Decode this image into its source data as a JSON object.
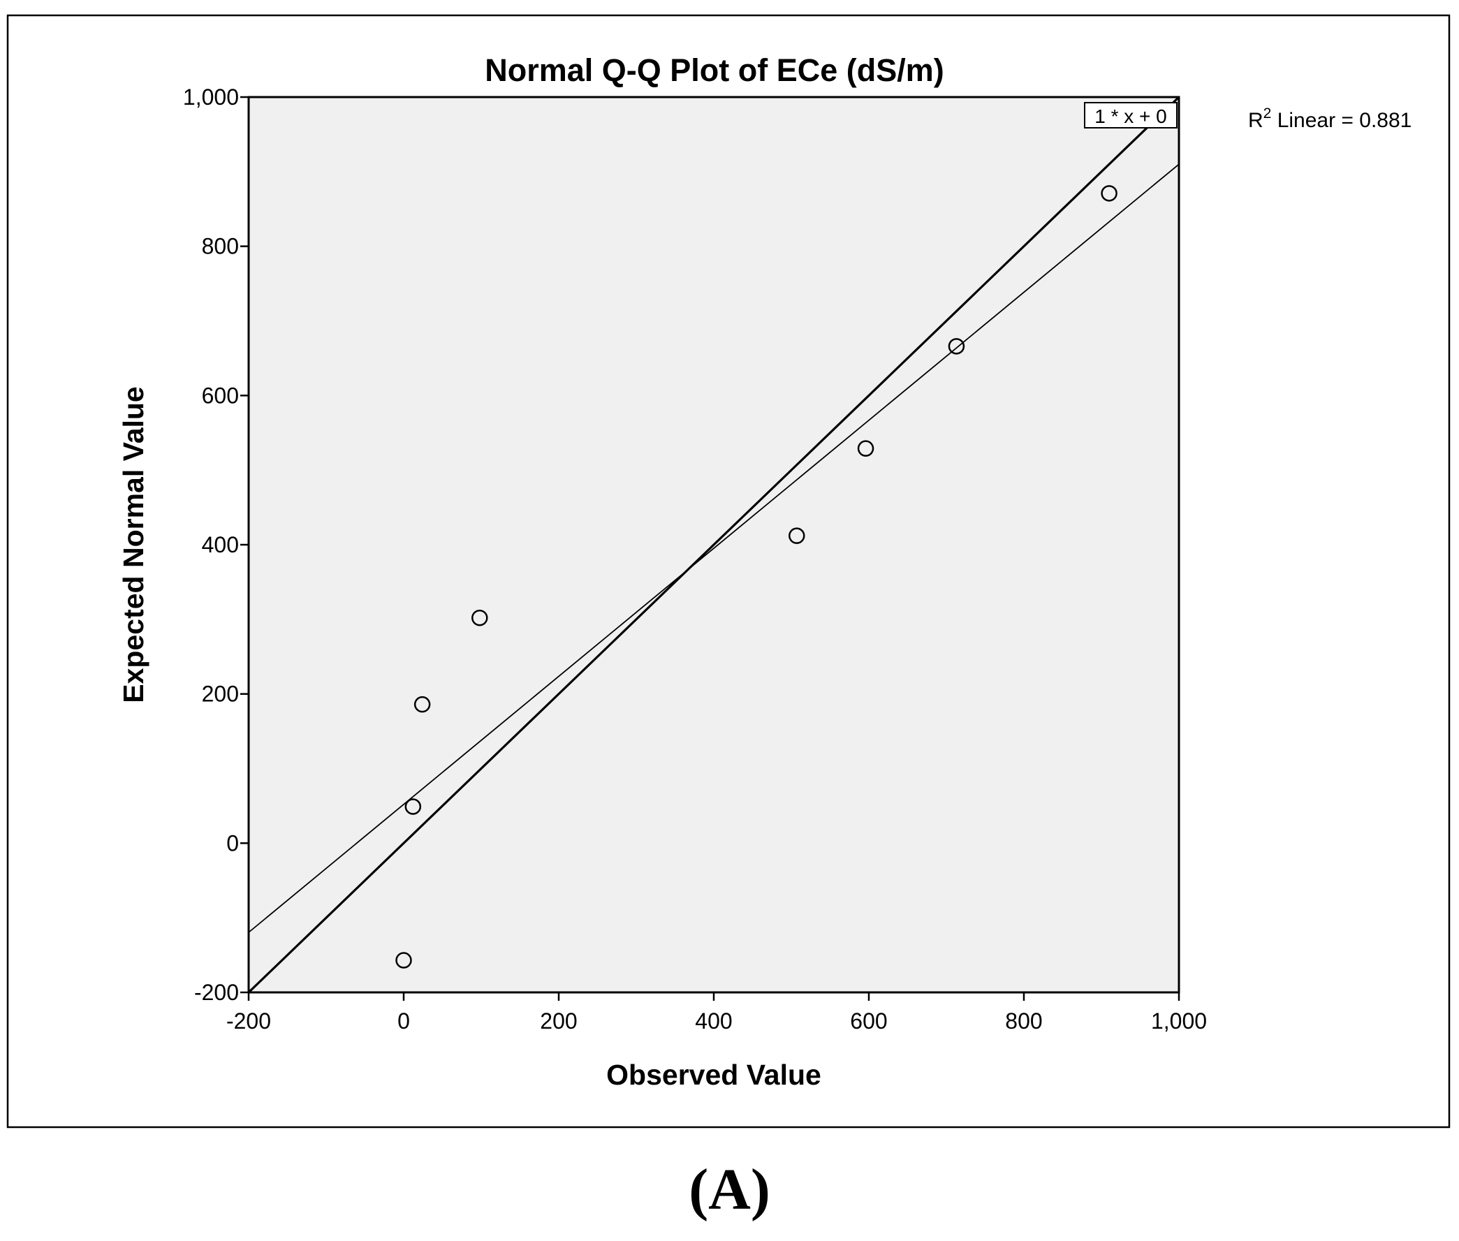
{
  "chart_data": {
    "type": "scatter",
    "title": "Normal Q-Q Plot of ECe (dS/m)",
    "xlabel": "Observed Value",
    "ylabel": "Expected Normal Value",
    "xlim": [
      -200,
      1000
    ],
    "ylim": [
      -200,
      1000
    ],
    "x_ticks": [
      -200,
      0,
      200,
      400,
      600,
      800,
      1000
    ],
    "y_ticks": [
      -200,
      0,
      200,
      400,
      600,
      800,
      1000
    ],
    "x_tick_labels": [
      "-200",
      "0",
      "200",
      "400",
      "600",
      "800",
      "1,000"
    ],
    "y_tick_labels": [
      "-200",
      "0",
      "200",
      "400",
      "600",
      "800",
      "1,000"
    ],
    "grid": false,
    "background": "#f0f0f0",
    "marker": "open-circle",
    "series": [
      {
        "points": [
          {
            "x": 0,
            "y": -157
          },
          {
            "x": 12,
            "y": 49
          },
          {
            "x": 24,
            "y": 186
          },
          {
            "x": 98,
            "y": 302
          },
          {
            "x": 507,
            "y": 412
          },
          {
            "x": 596,
            "y": 529
          },
          {
            "x": 713,
            "y": 666
          },
          {
            "x": 910,
            "y": 871
          }
        ]
      }
    ],
    "reference_lines": [
      {
        "label": "1 * x + 0",
        "slope": 1,
        "intercept": 0,
        "style": "thick"
      },
      {
        "label": "R2 Linear = 0.881",
        "slope": 0.858,
        "intercept": 52,
        "style": "thin"
      }
    ],
    "annotations": {
      "identity_label": "1 * x + 0",
      "r2_prefix": "R",
      "r2_superscript": "2",
      "r2_text": " Linear = 0.881"
    }
  },
  "figure_label": "(A)"
}
